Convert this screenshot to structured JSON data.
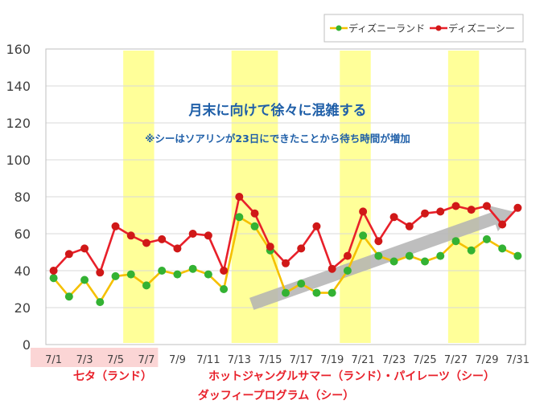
{
  "chart_data": {
    "type": "line",
    "title": "",
    "xlabel": "",
    "ylabel": "",
    "ylim": [
      0,
      160
    ],
    "yticks": [
      0,
      20,
      40,
      60,
      80,
      100,
      120,
      140,
      160
    ],
    "grid": "horizontal",
    "legend_position": "top-right",
    "categories": [
      "7/1",
      "7/2",
      "7/3",
      "7/4",
      "7/5",
      "7/6",
      "7/7",
      "7/8",
      "7/9",
      "7/10",
      "7/11",
      "7/12",
      "7/13",
      "7/14",
      "7/15",
      "7/16",
      "7/17",
      "7/18",
      "7/19",
      "7/20",
      "7/21",
      "7/22",
      "7/23",
      "7/24",
      "7/25",
      "7/26",
      "7/27",
      "7/28",
      "7/29",
      "7/30",
      "7/31"
    ],
    "x_tick_labels": [
      "7/1",
      "",
      "7/3",
      "",
      "7/5",
      "",
      "7/7",
      "",
      "7/9",
      "",
      "7/11",
      "",
      "7/13",
      "",
      "7/15",
      "",
      "7/17",
      "",
      "7/19",
      "",
      "7/21",
      "",
      "7/23",
      "",
      "7/25",
      "",
      "7/27",
      "",
      "7/29",
      "",
      "7/31"
    ],
    "series": [
      {
        "name": "ディズニーランド",
        "line_color": "#f5c000",
        "marker_color": "#33b233",
        "values": [
          36,
          26,
          35,
          23,
          37,
          38,
          32,
          40,
          38,
          41,
          38,
          30,
          69,
          64,
          51,
          28,
          33,
          28,
          28,
          40,
          59,
          48,
          45,
          48,
          45,
          48,
          56,
          51,
          57,
          52,
          48
        ]
      },
      {
        "name": "ディズニーシー",
        "line_color": "#e8202a",
        "marker_color": "#d01818",
        "values": [
          40,
          49,
          52,
          39,
          64,
          59,
          55,
          57,
          52,
          60,
          59,
          40,
          80,
          71,
          53,
          44,
          52,
          64,
          41,
          48,
          72,
          56,
          69,
          64,
          71,
          72,
          75,
          73,
          75,
          65,
          74
        ]
      }
    ],
    "highlight_color": "#ffff99",
    "highlight_ranges": [
      {
        "from": "7/6",
        "to": "7/7"
      },
      {
        "from": "7/13",
        "to": "7/15"
      },
      {
        "from": "7/20",
        "to": "7/21"
      },
      {
        "from": "7/27",
        "to": "7/28"
      }
    ],
    "annotations": {
      "main": "月末に向けて徐々に混雑する",
      "sub": "※シーはソアリンが23日にできたことから待ち時間が増加",
      "trend_arrow_color": "#b3b3b3",
      "trend_arrow_from": {
        "x": "7/16",
        "y": 22
      },
      "trend_arrow_to": {
        "x": "7/31",
        "y": 72
      }
    },
    "event_labels": [
      {
        "text": "七タ（ランド）"
      },
      {
        "text": "ホットジャングルサマー（ランド）・パイレーツ（シー）"
      },
      {
        "text": "ダッフィープログラム（シー）"
      }
    ],
    "event_label_color": "#e8202a",
    "xaxis_band_color": "#fbd5d5"
  }
}
